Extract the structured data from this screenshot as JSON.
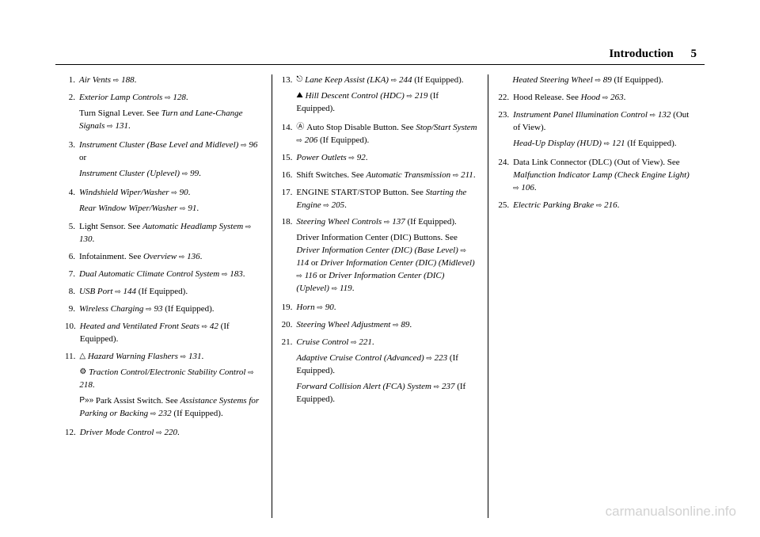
{
  "header": {
    "title": "Introduction",
    "page": "5"
  },
  "col1": [
    {
      "n": "1.",
      "segs": [
        {
          "t": "Air Vents ",
          "i": true
        },
        {
          "t": "⇨",
          "cls": "pref"
        },
        {
          "t": " 188",
          "i": true
        },
        {
          "t": "."
        }
      ]
    },
    {
      "n": "2.",
      "segs": [
        {
          "t": "Exterior Lamp Controls ",
          "i": true
        },
        {
          "t": "⇨",
          "cls": "pref"
        },
        {
          "t": " 128",
          "i": true
        },
        {
          "t": "."
        }
      ],
      "subs": [
        {
          "segs": [
            {
              "t": "Turn Signal Lever. See "
            },
            {
              "t": "Turn and Lane-Change Signals ",
              "i": true
            },
            {
              "t": "⇨",
              "cls": "pref"
            },
            {
              "t": " 131",
              "i": true
            },
            {
              "t": "."
            }
          ]
        }
      ]
    },
    {
      "n": "3.",
      "segs": [
        {
          "t": "Instrument Cluster (Base Level and Midlevel) ",
          "i": true
        },
        {
          "t": "⇨",
          "cls": "pref"
        },
        {
          "t": " 96",
          "i": true
        },
        {
          "t": " or"
        }
      ],
      "subs": [
        {
          "segs": [
            {
              "t": "Instrument Cluster (Uplevel) ",
              "i": true
            },
            {
              "t": "⇨",
              "cls": "pref"
            },
            {
              "t": " 99",
              "i": true
            },
            {
              "t": "."
            }
          ]
        }
      ]
    },
    {
      "n": "4.",
      "segs": [
        {
          "t": "Windshield Wiper/Washer ",
          "i": true
        },
        {
          "t": "⇨",
          "cls": "pref"
        },
        {
          "t": " 90",
          "i": true
        },
        {
          "t": "."
        }
      ],
      "subs": [
        {
          "segs": [
            {
              "t": "Rear Window Wiper/Washer ",
              "i": true
            },
            {
              "t": "⇨",
              "cls": "pref"
            },
            {
              "t": " 91",
              "i": true
            },
            {
              "t": "."
            }
          ]
        }
      ]
    },
    {
      "n": "5.",
      "segs": [
        {
          "t": "Light Sensor. See "
        },
        {
          "t": "Automatic Headlamp System ",
          "i": true
        },
        {
          "t": "⇨",
          "cls": "pref"
        },
        {
          "t": " 130",
          "i": true
        },
        {
          "t": "."
        }
      ]
    },
    {
      "n": "6.",
      "segs": [
        {
          "t": "Infotainment. See "
        },
        {
          "t": "Overview ",
          "i": true
        },
        {
          "t": "⇨",
          "cls": "pref"
        },
        {
          "t": " 136",
          "i": true
        },
        {
          "t": "."
        }
      ]
    },
    {
      "n": "7.",
      "segs": [
        {
          "t": "Dual Automatic Climate Control System ",
          "i": true
        },
        {
          "t": "⇨",
          "cls": "pref"
        },
        {
          "t": " 183",
          "i": true
        },
        {
          "t": "."
        }
      ]
    },
    {
      "n": "8.",
      "segs": [
        {
          "t": "USB Port ",
          "i": true
        },
        {
          "t": "⇨",
          "cls": "pref"
        },
        {
          "t": " 144",
          "i": true
        },
        {
          "t": " (If Equipped)."
        }
      ]
    },
    {
      "n": "9.",
      "segs": [
        {
          "t": "Wireless Charging ",
          "i": true
        },
        {
          "t": "⇨",
          "cls": "pref"
        },
        {
          "t": " 93",
          "i": true
        },
        {
          "t": " (If Equipped)."
        }
      ]
    },
    {
      "n": "10.",
      "segs": [
        {
          "t": "Heated and Ventilated Front Seats ",
          "i": true
        },
        {
          "t": "⇨",
          "cls": "pref"
        },
        {
          "t": " 42",
          "i": true
        },
        {
          "t": " (If Equipped)."
        }
      ]
    },
    {
      "n": "11.",
      "segs": [
        {
          "t": "△ ",
          "cls": "icon"
        },
        {
          "t": "Hazard Warning Flashers ",
          "i": true
        },
        {
          "t": "⇨",
          "cls": "pref"
        },
        {
          "t": " 131",
          "i": true
        },
        {
          "t": "."
        }
      ],
      "subs": [
        {
          "segs": [
            {
              "t": "⚙ ",
              "cls": "icon"
            },
            {
              "t": "Traction Control/Electronic Stability Control ",
              "i": true
            },
            {
              "t": "⇨",
              "cls": "pref"
            },
            {
              "t": " 218",
              "i": true
            },
            {
              "t": "."
            }
          ]
        },
        {
          "segs": [
            {
              "t": "P»» ",
              "cls": "icon"
            },
            {
              "t": "Park Assist Switch. See "
            },
            {
              "t": "Assistance Systems for Parking or Backing ",
              "i": true
            },
            {
              "t": "⇨",
              "cls": "pref"
            },
            {
              "t": " 232",
              "i": true
            },
            {
              "t": " (If Equipped)."
            }
          ]
        }
      ]
    },
    {
      "n": "12.",
      "segs": [
        {
          "t": "Driver Mode Control ",
          "i": true
        },
        {
          "t": "⇨",
          "cls": "pref"
        },
        {
          "t": " 220",
          "i": true
        },
        {
          "t": "."
        }
      ]
    }
  ],
  "col2": [
    {
      "n": "13.",
      "segs": [
        {
          "t": "⎋ ",
          "cls": "icon"
        },
        {
          "t": "Lane Keep Assist (LKA) ",
          "i": true
        },
        {
          "t": "⇨",
          "cls": "pref"
        },
        {
          "t": " 244",
          "i": true
        },
        {
          "t": " (If Equipped)."
        }
      ],
      "subs": [
        {
          "segs": [
            {
              "t": "⛰ ",
              "cls": "icon"
            },
            {
              "t": "Hill Descent Control (HDC) ",
              "i": true
            },
            {
              "t": "⇨",
              "cls": "pref"
            },
            {
              "t": " 219",
              "i": true
            },
            {
              "t": " (If Equipped)."
            }
          ]
        }
      ]
    },
    {
      "n": "14.",
      "segs": [
        {
          "t": "Ⓐ ",
          "cls": "icon"
        },
        {
          "t": "Auto Stop Disable Button. See "
        },
        {
          "t": "Stop/Start System ",
          "i": true
        },
        {
          "t": "⇨",
          "cls": "pref"
        },
        {
          "t": " 206",
          "i": true
        },
        {
          "t": " (If Equipped)."
        }
      ]
    },
    {
      "n": "15.",
      "segs": [
        {
          "t": "Power Outlets ",
          "i": true
        },
        {
          "t": "⇨",
          "cls": "pref"
        },
        {
          "t": " 92",
          "i": true
        },
        {
          "t": "."
        }
      ]
    },
    {
      "n": "16.",
      "segs": [
        {
          "t": "Shift Switches. See "
        },
        {
          "t": "Automatic Transmission ",
          "i": true
        },
        {
          "t": "⇨",
          "cls": "pref"
        },
        {
          "t": " 211",
          "i": true
        },
        {
          "t": "."
        }
      ]
    },
    {
      "n": "17.",
      "segs": [
        {
          "t": "ENGINE START/STOP Button. See "
        },
        {
          "t": "Starting the Engine ",
          "i": true
        },
        {
          "t": "⇨",
          "cls": "pref"
        },
        {
          "t": " 205",
          "i": true
        },
        {
          "t": "."
        }
      ]
    },
    {
      "n": "18.",
      "segs": [
        {
          "t": "Steering Wheel Controls ",
          "i": true
        },
        {
          "t": "⇨",
          "cls": "pref"
        },
        {
          "t": " 137",
          "i": true
        },
        {
          "t": " (If Equipped)."
        }
      ],
      "subs": [
        {
          "segs": [
            {
              "t": "Driver Information Center (DIC) Buttons. See "
            },
            {
              "t": "Driver Information Center (DIC) (Base Level) ",
              "i": true
            },
            {
              "t": "⇨",
              "cls": "pref"
            },
            {
              "t": " 114",
              "i": true
            },
            {
              "t": " or "
            },
            {
              "t": "Driver Information Center (DIC) (Midlevel) ",
              "i": true
            },
            {
              "t": "⇨",
              "cls": "pref"
            },
            {
              "t": " 116",
              "i": true
            },
            {
              "t": " or "
            },
            {
              "t": "Driver Information Center (DIC) (Uplevel) ",
              "i": true
            },
            {
              "t": "⇨",
              "cls": "pref"
            },
            {
              "t": " 119",
              "i": true
            },
            {
              "t": "."
            }
          ]
        }
      ]
    },
    {
      "n": "19.",
      "segs": [
        {
          "t": "Horn ",
          "i": true
        },
        {
          "t": "⇨",
          "cls": "pref"
        },
        {
          "t": " 90",
          "i": true
        },
        {
          "t": "."
        }
      ]
    },
    {
      "n": "20.",
      "segs": [
        {
          "t": "Steering Wheel Adjustment ",
          "i": true
        },
        {
          "t": "⇨",
          "cls": "pref"
        },
        {
          "t": " 89",
          "i": true
        },
        {
          "t": "."
        }
      ]
    },
    {
      "n": "21.",
      "segs": [
        {
          "t": "Cruise Control ",
          "i": true
        },
        {
          "t": "⇨",
          "cls": "pref"
        },
        {
          "t": " 221",
          "i": true
        },
        {
          "t": "."
        }
      ],
      "subs": [
        {
          "segs": [
            {
              "t": "Adaptive Cruise Control (Advanced) ",
              "i": true
            },
            {
              "t": "⇨",
              "cls": "pref"
            },
            {
              "t": " 223",
              "i": true
            },
            {
              "t": " (If Equipped)."
            }
          ]
        },
        {
          "segs": [
            {
              "t": "Forward Collision Alert (FCA) System ",
              "i": true
            },
            {
              "t": "⇨",
              "cls": "pref"
            },
            {
              "t": " 237",
              "i": true
            },
            {
              "t": " (If Equipped)."
            }
          ]
        }
      ]
    }
  ],
  "col3": [
    {
      "n": "",
      "segs": [
        {
          "t": "Heated Steering Wheel ",
          "i": true
        },
        {
          "t": "⇨",
          "cls": "pref"
        },
        {
          "t": " 89",
          "i": true
        },
        {
          "t": " (If Equipped)."
        }
      ]
    },
    {
      "n": "22.",
      "segs": [
        {
          "t": "Hood Release. See "
        },
        {
          "t": "Hood ",
          "i": true
        },
        {
          "t": "⇨",
          "cls": "pref"
        },
        {
          "t": " 263",
          "i": true
        },
        {
          "t": "."
        }
      ]
    },
    {
      "n": "23.",
      "segs": [
        {
          "t": "Instrument Panel Illumination Control ",
          "i": true
        },
        {
          "t": "⇨",
          "cls": "pref"
        },
        {
          "t": " 132",
          "i": true
        },
        {
          "t": " (Out of View)."
        }
      ],
      "subs": [
        {
          "segs": [
            {
              "t": "Head-Up Display (HUD) ",
              "i": true
            },
            {
              "t": "⇨",
              "cls": "pref"
            },
            {
              "t": " 121",
              "i": true
            },
            {
              "t": " (If Equipped)."
            }
          ]
        }
      ]
    },
    {
      "n": "24.",
      "segs": [
        {
          "t": "Data Link Connector (DLC) (Out of View). See "
        },
        {
          "t": "Malfunction Indicator Lamp (Check Engine Light) ",
          "i": true
        },
        {
          "t": "⇨",
          "cls": "pref"
        },
        {
          "t": " 106",
          "i": true
        },
        {
          "t": "."
        }
      ]
    },
    {
      "n": "25.",
      "segs": [
        {
          "t": "Electric Parking Brake ",
          "i": true
        },
        {
          "t": "⇨",
          "cls": "pref"
        },
        {
          "t": " 216",
          "i": true
        },
        {
          "t": "."
        }
      ]
    }
  ],
  "watermark": "carmanualsonline.info"
}
